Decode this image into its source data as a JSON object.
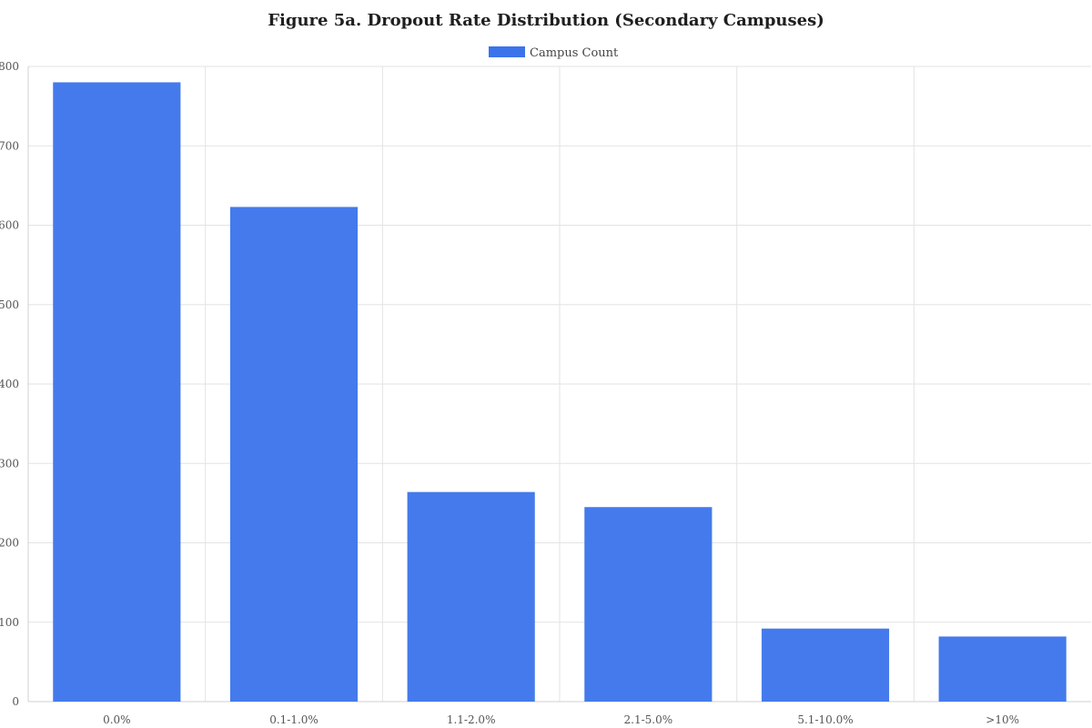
{
  "chart_data": {
    "type": "bar",
    "title": "Figure 5a. Dropout Rate Distribution (Secondary Campuses)",
    "xlabel": "",
    "ylabel": "",
    "categories": [
      "0.0%",
      "0.1-1.0%",
      "1.1-2.0%",
      "2.1-5.0%",
      "5.1-10.0%",
      ">10%"
    ],
    "series": [
      {
        "name": "Campus Count",
        "values": [
          780,
          623,
          264,
          245,
          92,
          82
        ],
        "color": "#3b73eb"
      }
    ],
    "ylim": [
      0,
      800
    ],
    "yticks": [
      0,
      100,
      200,
      300,
      400,
      500,
      600,
      700,
      800
    ],
    "grid": true,
    "legend_position": "top-center"
  }
}
